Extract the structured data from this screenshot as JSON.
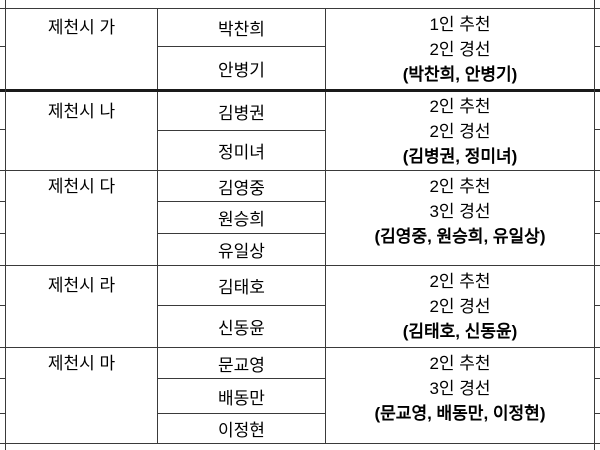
{
  "table": {
    "sections": [
      {
        "district": "제천시 가",
        "candidates": [
          "박찬희",
          "안병기"
        ],
        "recommendation": "1인 추천",
        "contest": "2인 경선",
        "contest_candidates": "(박찬희, 안병기)"
      },
      {
        "district": "제천시 나",
        "candidates": [
          "김병권",
          "정미녀"
        ],
        "recommendation": "2인 추천",
        "contest": "2인 경선",
        "contest_candidates": "(김병권, 정미녀)"
      },
      {
        "district": "제천시 다",
        "candidates": [
          "김영중",
          "원승희",
          "유일상"
        ],
        "recommendation": "2인 추천",
        "contest": "3인 경선",
        "contest_candidates": "(김영중, 원승희, 유일상)"
      },
      {
        "district": "제천시 라",
        "candidates": [
          "김태호",
          "신동윤"
        ],
        "recommendation": "2인 추천",
        "contest": "2인 경선",
        "contest_candidates": "(김태호, 신동윤)"
      },
      {
        "district": "제천시 마",
        "candidates": [
          "문교영",
          "배동만",
          "이정현"
        ],
        "recommendation": "2인 추천",
        "contest": "3인 경선",
        "contest_candidates": "(문교영, 배동만, 이정현)"
      }
    ]
  },
  "colors": {
    "grid_line": "#3a3a3a",
    "thick_divider": "#1a1a1a",
    "text": "#000000",
    "background": "#ffffff"
  }
}
